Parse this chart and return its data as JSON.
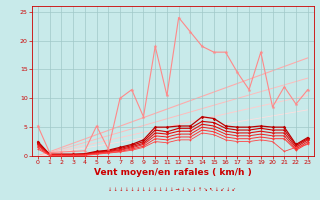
{
  "xlabel": "Vent moyen/en rafales ( km/h )",
  "xlim": [
    -0.5,
    23.5
  ],
  "ylim": [
    0,
    26
  ],
  "yticks": [
    0,
    5,
    10,
    15,
    20,
    25
  ],
  "xticks": [
    0,
    1,
    2,
    3,
    4,
    5,
    6,
    7,
    8,
    9,
    10,
    11,
    12,
    13,
    14,
    15,
    16,
    17,
    18,
    19,
    20,
    21,
    22,
    23
  ],
  "bg_color": "#c8eaea",
  "grid_color": "#a0c8c8",
  "tick_fontsize": 4.5,
  "label_fontsize": 6.5,
  "tick_color": "#cc0000",
  "line_color_pink": "#ff9999",
  "line_color_red1": "#cc0000",
  "line_color_red2": "#dd2222",
  "line_color_red3": "#ee3333",
  "slope_lines": [
    {
      "end_y": 17.0,
      "color": "#ffaaaa",
      "lw": 0.8
    },
    {
      "end_y": 13.5,
      "color": "#ffbbbb",
      "lw": 0.7
    },
    {
      "end_y": 10.5,
      "color": "#ffcccc",
      "lw": 0.7
    },
    {
      "end_y": 8.0,
      "color": "#ffdddd",
      "lw": 0.6
    }
  ],
  "pink_line": {
    "x": [
      0,
      1,
      2,
      3,
      4,
      5,
      6,
      7,
      8,
      9,
      10,
      11,
      12,
      13,
      14,
      15,
      16,
      17,
      18,
      19,
      20,
      21,
      22,
      23
    ],
    "y": [
      5.2,
      0.6,
      0.7,
      0.8,
      0.9,
      5.2,
      1.2,
      10.0,
      11.5,
      6.8,
      19.0,
      10.5,
      24.0,
      21.5,
      19.0,
      18.0,
      18.0,
      14.5,
      11.5,
      18.0,
      8.5,
      12.0,
      9.0,
      11.5
    ],
    "color": "#ff8888",
    "lw": 0.8,
    "marker": "*",
    "ms": 3.0
  },
  "red_lines": [
    {
      "x": [
        0,
        1,
        2,
        3,
        4,
        5,
        6,
        7,
        8,
        9,
        10,
        11,
        12,
        13,
        14,
        15,
        16,
        17,
        18,
        19,
        20,
        21,
        22,
        23
      ],
      "y": [
        2.5,
        0.3,
        0.3,
        0.3,
        0.4,
        0.8,
        1.0,
        1.5,
        2.0,
        2.8,
        5.0,
        5.0,
        5.2,
        5.2,
        6.8,
        6.5,
        5.2,
        5.0,
        5.0,
        5.2,
        5.0,
        5.0,
        2.0,
        3.2
      ],
      "color": "#bb0000",
      "lw": 0.9,
      "marker": "D",
      "ms": 1.8
    },
    {
      "x": [
        0,
        1,
        2,
        3,
        4,
        5,
        6,
        7,
        8,
        9,
        10,
        11,
        12,
        13,
        14,
        15,
        16,
        17,
        18,
        19,
        20,
        21,
        22,
        23
      ],
      "y": [
        2.2,
        0.3,
        0.3,
        0.3,
        0.3,
        0.7,
        0.9,
        1.3,
        1.8,
        2.5,
        4.5,
        4.2,
        4.8,
        4.8,
        6.0,
        5.8,
        4.8,
        4.5,
        4.5,
        4.8,
        4.5,
        4.5,
        1.8,
        3.0
      ],
      "color": "#cc0000",
      "lw": 0.8,
      "marker": "D",
      "ms": 1.5
    },
    {
      "x": [
        0,
        1,
        2,
        3,
        4,
        5,
        6,
        7,
        8,
        9,
        10,
        11,
        12,
        13,
        14,
        15,
        16,
        17,
        18,
        19,
        20,
        21,
        22,
        23
      ],
      "y": [
        2.0,
        0.2,
        0.2,
        0.2,
        0.3,
        0.6,
        0.8,
        1.1,
        1.6,
        2.2,
        4.0,
        3.8,
        4.3,
        4.3,
        5.5,
        5.2,
        4.3,
        4.0,
        4.0,
        4.3,
        4.0,
        4.0,
        1.5,
        2.8
      ],
      "color": "#dd1111",
      "lw": 0.8,
      "marker": "D",
      "ms": 1.4
    },
    {
      "x": [
        0,
        1,
        2,
        3,
        4,
        5,
        6,
        7,
        8,
        9,
        10,
        11,
        12,
        13,
        14,
        15,
        16,
        17,
        18,
        19,
        20,
        21,
        22,
        23
      ],
      "y": [
        1.8,
        0.2,
        0.2,
        0.2,
        0.2,
        0.5,
        0.7,
        1.0,
        1.4,
        2.0,
        3.5,
        3.3,
        3.8,
        3.8,
        5.0,
        4.7,
        3.8,
        3.5,
        3.5,
        3.8,
        3.5,
        3.5,
        1.2,
        2.5
      ],
      "color": "#ee2222",
      "lw": 0.7,
      "marker": "D",
      "ms": 1.3
    },
    {
      "x": [
        0,
        1,
        2,
        3,
        4,
        5,
        6,
        7,
        8,
        9,
        10,
        11,
        12,
        13,
        14,
        15,
        16,
        17,
        18,
        19,
        20,
        21,
        22,
        23
      ],
      "y": [
        1.5,
        0.1,
        0.1,
        0.1,
        0.2,
        0.4,
        0.6,
        0.8,
        1.2,
        1.7,
        3.0,
        2.8,
        3.3,
        3.3,
        4.5,
        4.2,
        3.3,
        3.0,
        3.0,
        3.3,
        3.0,
        3.0,
        1.0,
        2.2
      ],
      "color": "#ff3333",
      "lw": 0.7,
      "marker": "D",
      "ms": 1.2
    },
    {
      "x": [
        0,
        1,
        2,
        3,
        4,
        5,
        6,
        7,
        8,
        9,
        10,
        11,
        12,
        13,
        14,
        15,
        16,
        17,
        18,
        19,
        20,
        21,
        22,
        23
      ],
      "y": [
        1.2,
        0.1,
        0.1,
        0.1,
        0.1,
        0.3,
        0.5,
        0.7,
        1.0,
        1.5,
        2.5,
        2.3,
        2.8,
        2.8,
        4.0,
        3.7,
        2.8,
        2.5,
        2.5,
        2.8,
        2.5,
        0.8,
        1.5,
        2.0
      ],
      "color": "#ff4444",
      "lw": 0.6,
      "marker": "D",
      "ms": 1.1
    }
  ]
}
